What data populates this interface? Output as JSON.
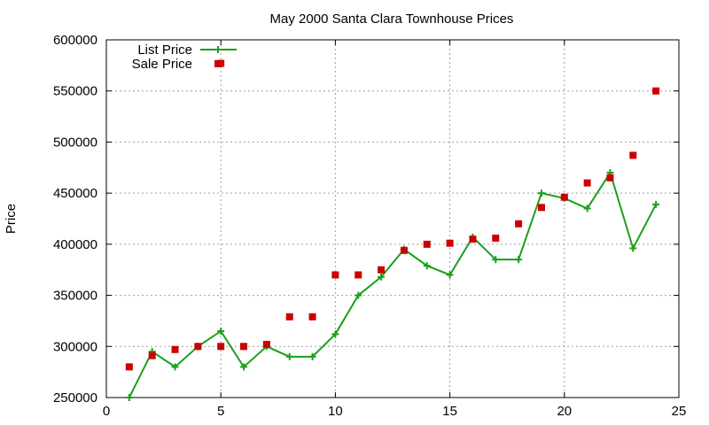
{
  "chart_data": {
    "type": "line",
    "title": "May 2000 Santa Clara Townhouse Prices",
    "xlabel": "",
    "ylabel": "Price",
    "xlim": [
      0,
      25
    ],
    "ylim": [
      250000,
      600000
    ],
    "xticks": [
      0,
      5,
      10,
      15,
      20,
      25
    ],
    "yticks": [
      250000,
      300000,
      350000,
      400000,
      450000,
      500000,
      550000,
      600000
    ],
    "grid": true,
    "legend_position": "top-left",
    "series": [
      {
        "name": "List Price",
        "style": "line+plus",
        "color": "#1aa01a",
        "x": [
          1,
          2,
          3,
          4,
          5,
          6,
          7,
          8,
          9,
          10,
          11,
          12,
          13,
          14,
          15,
          16,
          17,
          18,
          19,
          20,
          21,
          22,
          23,
          24
        ],
        "y": [
          250000,
          295000,
          280000,
          300000,
          315000,
          280000,
          300000,
          290000,
          290000,
          312000,
          350000,
          368000,
          395000,
          379000,
          370000,
          407000,
          385000,
          385000,
          450000,
          445000,
          435000,
          470000,
          396000,
          439000
        ]
      },
      {
        "name": "Sale Price",
        "style": "square-points",
        "color": "#cc0000",
        "x": [
          1,
          2,
          3,
          4,
          5,
          5,
          6,
          7,
          8,
          9,
          10,
          11,
          12,
          13,
          14,
          15,
          16,
          17,
          18,
          19,
          20,
          21,
          22,
          23,
          24
        ],
        "y": [
          280000,
          291000,
          297000,
          300000,
          577000,
          300000,
          300000,
          302000,
          329000,
          329000,
          370000,
          370000,
          375000,
          394000,
          400000,
          401000,
          405000,
          406000,
          420000,
          436000,
          446000,
          460000,
          465000,
          487000,
          550000
        ]
      }
    ]
  }
}
